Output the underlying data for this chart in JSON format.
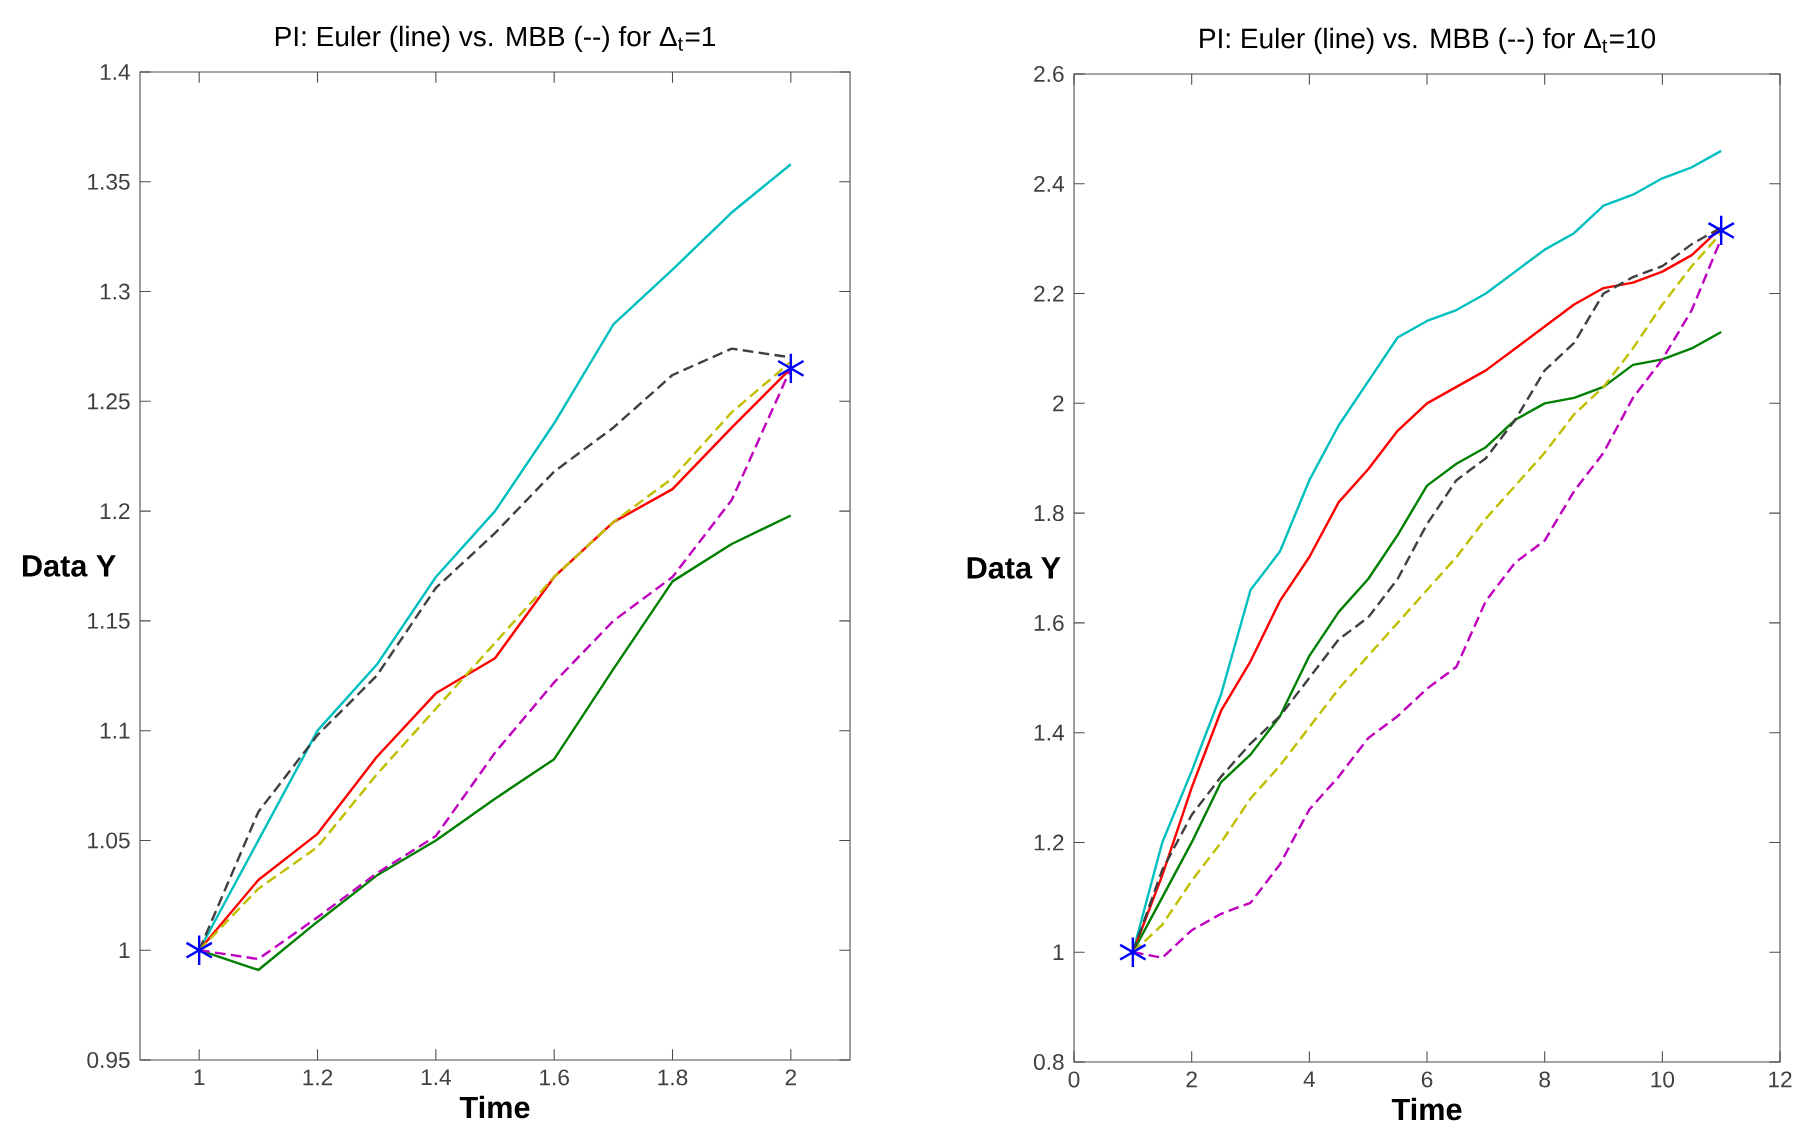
{
  "chart_data": [
    {
      "type": "line",
      "title": "PI: Euler (line) vs. MBB (--)  for Δ$_{t}$=1",
      "xlabel": "Time",
      "ylabel": "Data Y",
      "xlim": [
        0.9,
        2.1
      ],
      "ylim": [
        0.95,
        1.4
      ],
      "xticks": [
        1,
        1.2,
        1.4,
        1.6,
        1.8,
        2
      ],
      "yticks": [
        0.95,
        1,
        1.05,
        1.1,
        1.15,
        1.2,
        1.25,
        1.3,
        1.35,
        1.4
      ],
      "series": [
        {
          "color": "#00bfbf",
          "line_style": "solid",
          "x": [
            1,
            1.1,
            1.2,
            1.3,
            1.4,
            1.5,
            1.6,
            1.7,
            1.8,
            1.9,
            2
          ],
          "values": [
            1.0,
            1.05,
            1.1,
            1.13,
            1.17,
            1.2,
            1.24,
            1.285,
            1.31,
            1.336,
            1.358
          ]
        },
        {
          "color": "#ff0000",
          "line_style": "solid",
          "x": [
            1,
            1.1,
            1.2,
            1.3,
            1.4,
            1.5,
            1.6,
            1.7,
            1.8,
            1.9,
            2
          ],
          "values": [
            1.0,
            1.032,
            1.053,
            1.088,
            1.117,
            1.133,
            1.17,
            1.195,
            1.21,
            1.238,
            1.265
          ]
        },
        {
          "color": "#008000",
          "line_style": "solid",
          "x": [
            1,
            1.1,
            1.2,
            1.3,
            1.4,
            1.5,
            1.6,
            1.7,
            1.8,
            1.9,
            2
          ],
          "values": [
            1.0,
            0.991,
            1.013,
            1.034,
            1.05,
            1.069,
            1.087,
            1.128,
            1.168,
            1.185,
            1.198
          ]
        },
        {
          "color": "#404040",
          "line_style": "dashed",
          "x": [
            1,
            1.1,
            1.2,
            1.3,
            1.4,
            1.5,
            1.6,
            1.7,
            1.8,
            1.9,
            2
          ],
          "values": [
            1.0,
            1.063,
            1.098,
            1.125,
            1.165,
            1.19,
            1.218,
            1.238,
            1.262,
            1.274,
            1.27
          ]
        },
        {
          "color": "#bfbf00",
          "line_style": "dashed",
          "x": [
            1,
            1.1,
            1.2,
            1.3,
            1.4,
            1.5,
            1.6,
            1.7,
            1.8,
            1.9,
            2
          ],
          "values": [
            1.0,
            1.028,
            1.047,
            1.08,
            1.11,
            1.14,
            1.17,
            1.195,
            1.215,
            1.245,
            1.268
          ]
        },
        {
          "color": "#bf00bf",
          "line_style": "dashed",
          "x": [
            1,
            1.1,
            1.2,
            1.3,
            1.4,
            1.5,
            1.6,
            1.7,
            1.8,
            1.9,
            2
          ],
          "values": [
            1.0,
            0.996,
            1.015,
            1.035,
            1.052,
            1.09,
            1.122,
            1.15,
            1.17,
            1.205,
            1.265
          ]
        },
        {
          "type": "scatter",
          "marker": "cross",
          "color": "#0000ff",
          "x": [
            1,
            2
          ],
          "values": [
            1.0,
            1.265
          ]
        }
      ]
    },
    {
      "type": "line",
      "title": "PI: Euler (line) vs. MBB (--)  for Δ$_{t}$=10",
      "xlabel": "Time",
      "ylabel": "Data Y",
      "xlim": [
        0,
        12
      ],
      "ylim": [
        0.8,
        2.6
      ],
      "xticks": [
        0,
        2,
        4,
        6,
        8,
        10,
        12
      ],
      "yticks": [
        0.8,
        1,
        1.2,
        1.4,
        1.6,
        1.8,
        2,
        2.2,
        2.4,
        2.6
      ],
      "series": [
        {
          "color": "#00bfbf",
          "line_style": "solid",
          "x": [
            1,
            1.5,
            2,
            2.5,
            3,
            3.5,
            4,
            4.5,
            5,
            5.5,
            6,
            6.5,
            7,
            7.5,
            8,
            8.5,
            9,
            9.5,
            10,
            10.5,
            11
          ],
          "values": [
            1.0,
            1.2,
            1.33,
            1.47,
            1.66,
            1.73,
            1.86,
            1.96,
            2.04,
            2.12,
            2.15,
            2.17,
            2.2,
            2.24,
            2.28,
            2.31,
            2.36,
            2.38,
            2.41,
            2.43,
            2.46
          ]
        },
        {
          "color": "#ff0000",
          "line_style": "solid",
          "x": [
            1,
            1.5,
            2,
            2.5,
            3,
            3.5,
            4,
            4.5,
            5,
            5.5,
            6,
            6.5,
            7,
            7.5,
            8,
            8.5,
            9,
            9.5,
            10,
            10.5,
            11
          ],
          "values": [
            1.0,
            1.14,
            1.3,
            1.44,
            1.53,
            1.64,
            1.72,
            1.82,
            1.88,
            1.95,
            2.0,
            2.03,
            2.06,
            2.1,
            2.14,
            2.18,
            2.21,
            2.22,
            2.24,
            2.27,
            2.32
          ]
        },
        {
          "color": "#008000",
          "line_style": "solid",
          "x": [
            1,
            1.5,
            2,
            2.5,
            3,
            3.5,
            4,
            4.5,
            5,
            5.5,
            6,
            6.5,
            7,
            7.5,
            8,
            8.5,
            9,
            9.5,
            10,
            10.5,
            11
          ],
          "values": [
            1.0,
            1.1,
            1.2,
            1.31,
            1.36,
            1.43,
            1.54,
            1.62,
            1.68,
            1.76,
            1.85,
            1.89,
            1.92,
            1.97,
            2.0,
            2.01,
            2.03,
            2.07,
            2.08,
            2.1,
            2.13
          ]
        },
        {
          "color": "#404040",
          "line_style": "dashed",
          "x": [
            1,
            1.5,
            2,
            2.5,
            3,
            3.5,
            4,
            4.5,
            5,
            5.5,
            6,
            6.5,
            7,
            7.5,
            8,
            8.5,
            9,
            9.5,
            10,
            10.5,
            11
          ],
          "values": [
            1.0,
            1.15,
            1.25,
            1.32,
            1.38,
            1.43,
            1.5,
            1.57,
            1.61,
            1.68,
            1.78,
            1.86,
            1.9,
            1.97,
            2.06,
            2.11,
            2.2,
            2.23,
            2.25,
            2.29,
            2.32
          ]
        },
        {
          "color": "#bfbf00",
          "line_style": "dashed",
          "x": [
            1,
            1.5,
            2,
            2.5,
            3,
            3.5,
            4,
            4.5,
            5,
            5.5,
            6,
            6.5,
            7,
            7.5,
            8,
            8.5,
            9,
            9.5,
            10,
            10.5,
            11
          ],
          "values": [
            1.0,
            1.05,
            1.13,
            1.2,
            1.28,
            1.34,
            1.41,
            1.48,
            1.54,
            1.6,
            1.66,
            1.72,
            1.79,
            1.85,
            1.91,
            1.98,
            2.03,
            2.1,
            2.18,
            2.25,
            2.31
          ]
        },
        {
          "color": "#bf00bf",
          "line_style": "dashed",
          "x": [
            1,
            1.5,
            2,
            2.5,
            3,
            3.5,
            4,
            4.5,
            5,
            5.5,
            6,
            6.5,
            7,
            7.5,
            8,
            8.5,
            9,
            9.5,
            10,
            10.5,
            11
          ],
          "values": [
            1.0,
            0.99,
            1.04,
            1.07,
            1.09,
            1.16,
            1.26,
            1.32,
            1.39,
            1.43,
            1.48,
            1.52,
            1.64,
            1.71,
            1.75,
            1.84,
            1.91,
            2.01,
            2.08,
            2.17,
            2.3
          ]
        },
        {
          "type": "scatter",
          "marker": "cross",
          "color": "#0000ff",
          "x": [
            1,
            11
          ],
          "values": [
            1.0,
            2.315
          ]
        }
      ]
    }
  ]
}
